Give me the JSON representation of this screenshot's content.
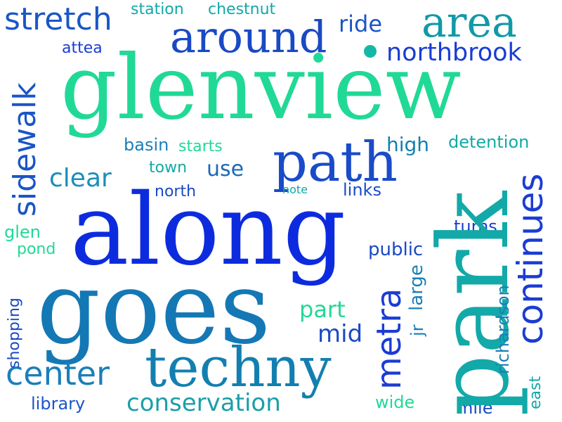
{
  "words": {
    "glenview": "glenview",
    "along": "along",
    "goes": "goes",
    "park": "park",
    "techny": "techny",
    "path": "path",
    "around": "around",
    "area": "area",
    "stretch": "stretch",
    "station": "station",
    "chestnut": "chestnut",
    "ride": "ride",
    "northbrook": "northbrook",
    "attea": "attea",
    "sidewalk": "sidewalk",
    "basin": "basin",
    "starts": "starts",
    "high": "high",
    "detention": "detention",
    "town": "town",
    "use": "use",
    "clear": "clear",
    "north": "north",
    "note": "note",
    "links": "links",
    "continues": "continues",
    "glen": "glen",
    "pond": "pond",
    "turns": "turns",
    "public": "public",
    "metra": "metra",
    "large": "large",
    "jr": "jr",
    "richardson": "richardson",
    "shopping": "shopping",
    "part": "part",
    "mid": "mid",
    "center": "center",
    "conservation": "conservation",
    "library": "library",
    "wide": "wide",
    "mile": "mile",
    "east": "east"
  },
  "colors": {
    "blue": "#1631d9",
    "blue_mid": "#1a55c9",
    "ocean": "#1976b8",
    "teal": "#12a0a8",
    "green": "#1fdc93"
  }
}
